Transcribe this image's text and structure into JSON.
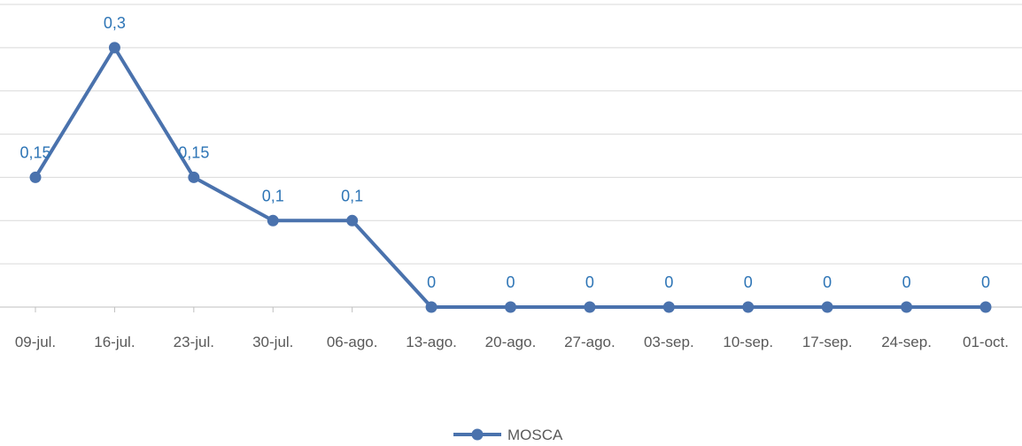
{
  "chart_data": {
    "type": "line",
    "categories": [
      "09-jul.",
      "16-jul.",
      "23-jul.",
      "30-jul.",
      "06-ago.",
      "13-ago.",
      "20-ago.",
      "27-ago.",
      "03-sep.",
      "10-sep.",
      "17-sep.",
      "24-sep.",
      "01-oct."
    ],
    "series": [
      {
        "name": "MOSCA",
        "values": [
          0.15,
          0.3,
          0.15,
          0.1,
          0.1,
          0,
          0,
          0,
          0,
          0,
          0,
          0,
          0
        ],
        "data_labels": [
          "0,15",
          "0,3",
          "0,15",
          "0,1",
          "0,1",
          "0",
          "0",
          "0",
          "0",
          "0",
          "0",
          "0",
          "0"
        ],
        "color": "#4a72ad",
        "label_color": "#2e75b6"
      }
    ],
    "ylim": [
      0,
      0.35
    ],
    "ygrid_step": 0.05,
    "grid": true,
    "y_tick_labels_shown": false,
    "legend_position": "bottom",
    "title": "",
    "xlabel": "",
    "ylabel": ""
  }
}
